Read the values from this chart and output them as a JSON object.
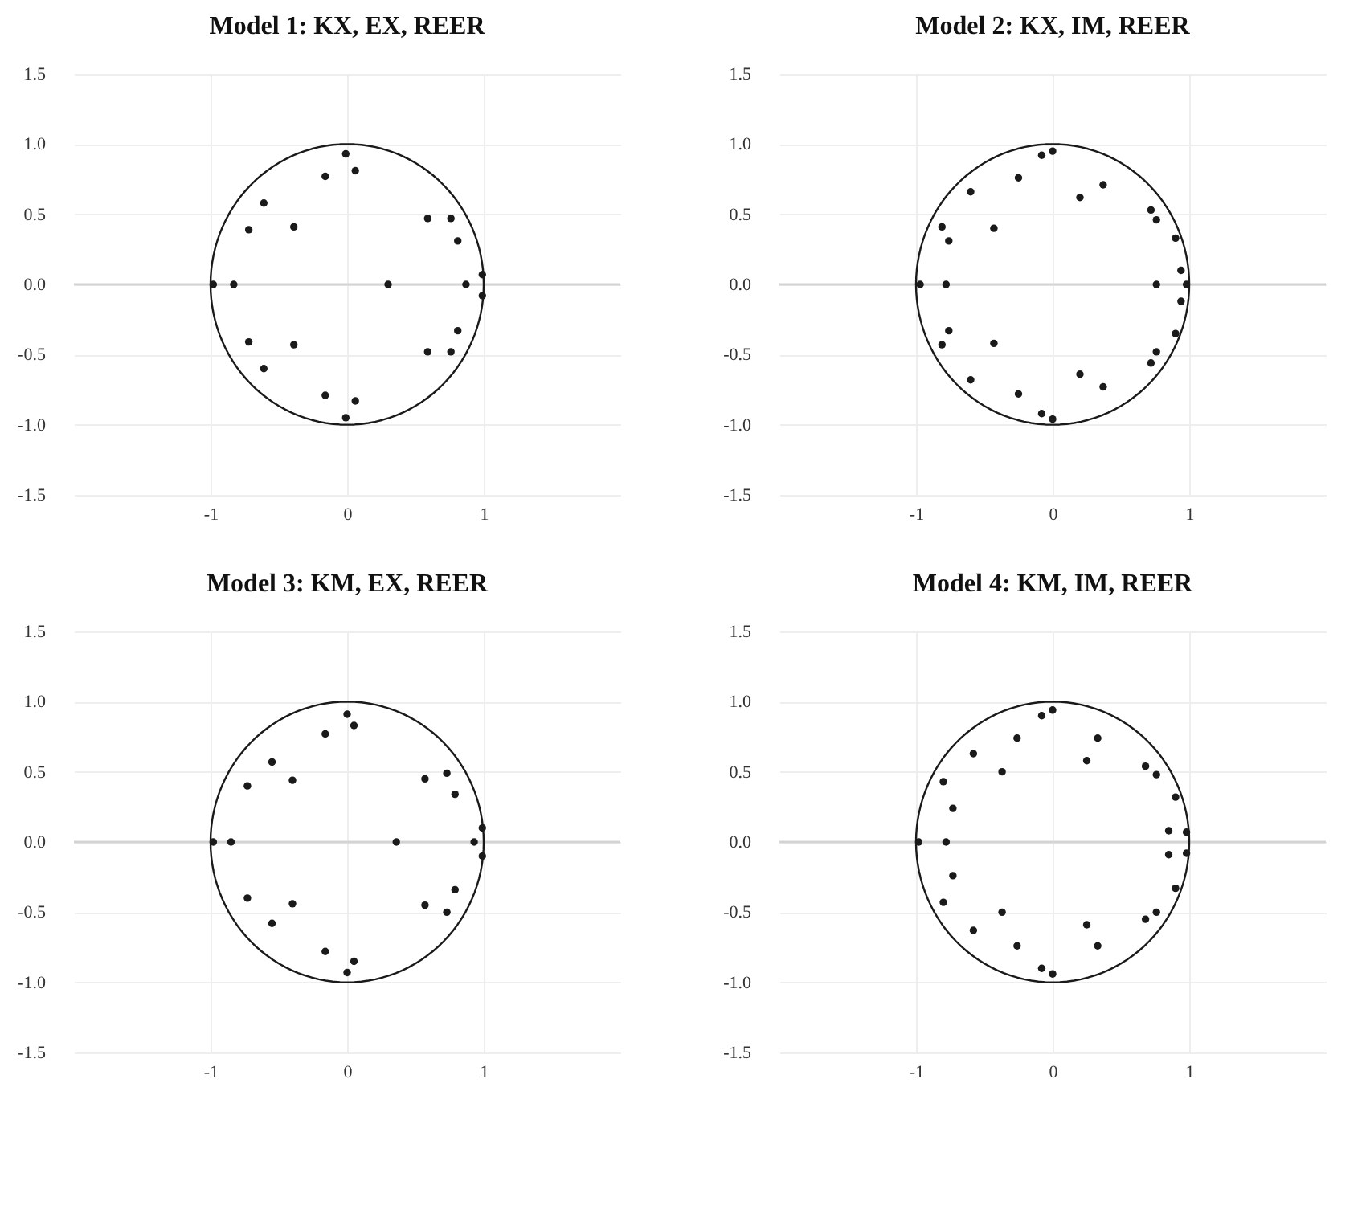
{
  "chart_data": [
    {
      "type": "scatter",
      "title": "Model 1: KX, EX, REER",
      "xlim": [
        -2,
        2
      ],
      "ylim": [
        -1.5,
        1.5
      ],
      "xticks": [
        -1,
        0,
        1
      ],
      "yticks": [
        1.5,
        {
          "value": 1,
          "label": "1.0"
        },
        0.5,
        {
          "value": 0,
          "label": "0.0"
        },
        -0.5,
        {
          "value": -1,
          "label": "-1.0"
        },
        -1.5
      ],
      "grid": true,
      "marker": "circle",
      "ref_lines": [
        {
          "axis": "y",
          "value": 0,
          "color": "#d4d4d4"
        }
      ],
      "series": [
        {
          "color": "#1a1a1a",
          "x": [
            -0.01,
            -0.01,
            0.06,
            0.06,
            -0.16,
            -0.16,
            -0.61,
            -0.61,
            -0.72,
            -0.72,
            -0.39,
            -0.39,
            -0.98,
            -0.83,
            0.3,
            0.59,
            0.59,
            0.76,
            0.76,
            0.81,
            0.81,
            0.99,
            0.99,
            0.87
          ],
          "values": [
            0.93,
            -0.95,
            0.81,
            -0.83,
            0.77,
            -0.79,
            0.58,
            -0.6,
            0.39,
            -0.41,
            0.41,
            -0.43,
            0,
            0,
            0,
            0.47,
            -0.48,
            0.47,
            -0.48,
            0.31,
            -0.33,
            0.07,
            -0.08,
            0
          ]
        }
      ]
    },
    {
      "type": "scatter",
      "title": "Model 2: KX, IM, REER",
      "xlim": [
        -2,
        2
      ],
      "ylim": [
        -1.5,
        1.5
      ],
      "xticks": [
        -1,
        0,
        1
      ],
      "yticks": [
        1.5,
        {
          "value": 1,
          "label": "1.0"
        },
        0.5,
        {
          "value": 0,
          "label": "0.0"
        },
        -0.5,
        {
          "value": -1,
          "label": "-1.0"
        },
        -1.5
      ],
      "grid": true,
      "marker": "circle",
      "ref_lines": [
        {
          "axis": "y",
          "value": 0,
          "color": "#d4d4d4"
        }
      ],
      "series": [
        {
          "color": "#1a1a1a",
          "x": [
            -0.08,
            0,
            -0.08,
            0,
            -0.25,
            -0.25,
            -0.6,
            -0.6,
            0.2,
            0.2,
            0.37,
            0.37,
            -0.81,
            -0.81,
            -0.76,
            -0.76,
            -0.43,
            -0.43,
            -0.97,
            -0.78,
            0.72,
            0.72,
            0.76,
            0.76,
            0.9,
            0.9,
            0.94,
            0.94,
            0.98,
            0.76
          ],
          "values": [
            0.92,
            0.95,
            -0.92,
            -0.96,
            0.76,
            -0.78,
            0.66,
            -0.68,
            0.62,
            -0.64,
            0.71,
            -0.73,
            0.41,
            -0.43,
            0.31,
            -0.33,
            0.4,
            -0.42,
            0,
            0,
            0.53,
            -0.56,
            0.46,
            -0.48,
            0.33,
            -0.35,
            0.1,
            -0.12,
            0,
            0
          ]
        }
      ]
    },
    {
      "type": "scatter",
      "title": "Model 3: KM, EX, REER",
      "xlim": [
        -2,
        2
      ],
      "ylim": [
        -1.5,
        1.5
      ],
      "xticks": [
        -1,
        0,
        1
      ],
      "yticks": [
        1.5,
        {
          "value": 1,
          "label": "1.0"
        },
        0.5,
        {
          "value": 0,
          "label": "0.0"
        },
        -0.5,
        {
          "value": -1,
          "label": "-1.0"
        },
        -1.5
      ],
      "grid": true,
      "marker": "circle",
      "ref_lines": [
        {
          "axis": "y",
          "value": 0,
          "color": "#d4d4d4"
        }
      ],
      "series": [
        {
          "color": "#1a1a1a",
          "x": [
            0,
            0,
            0.05,
            0.05,
            -0.16,
            -0.16,
            -0.55,
            -0.55,
            -0.73,
            -0.73,
            -0.4,
            -0.4,
            -0.98,
            -0.85,
            0.36,
            0.57,
            0.57,
            0.73,
            0.73,
            0.79,
            0.79,
            0.99,
            0.99,
            0.93
          ],
          "values": [
            0.91,
            -0.93,
            0.83,
            -0.85,
            0.77,
            -0.78,
            0.57,
            -0.58,
            0.4,
            -0.4,
            0.44,
            -0.44,
            0,
            0,
            0,
            0.45,
            -0.45,
            0.49,
            -0.5,
            0.34,
            -0.34,
            0.1,
            -0.1,
            0
          ]
        }
      ]
    },
    {
      "type": "scatter",
      "title": "Model 4: KM, IM, REER",
      "xlim": [
        -2,
        2
      ],
      "ylim": [
        -1.5,
        1.5
      ],
      "xticks": [
        -1,
        0,
        1
      ],
      "yticks": [
        1.5,
        {
          "value": 1,
          "label": "1.0"
        },
        0.5,
        {
          "value": 0,
          "label": "0.0"
        },
        -0.5,
        {
          "value": -1,
          "label": "-1.0"
        },
        -1.5
      ],
      "grid": true,
      "marker": "circle",
      "ref_lines": [
        {
          "axis": "y",
          "value": 0,
          "color": "#d4d4d4"
        }
      ],
      "series": [
        {
          "color": "#1a1a1a",
          "x": [
            -0.08,
            0,
            -0.08,
            0,
            -0.26,
            -0.26,
            -0.58,
            -0.58,
            -0.37,
            -0.37,
            0.33,
            0.33,
            0.25,
            0.25,
            -0.8,
            -0.8,
            -0.73,
            -0.73,
            -0.98,
            -0.78,
            0.68,
            0.68,
            0.76,
            0.76,
            0.9,
            0.9,
            0.85,
            0.85,
            0.98,
            0.98
          ],
          "values": [
            0.9,
            0.94,
            -0.9,
            -0.94,
            0.74,
            -0.74,
            0.63,
            -0.63,
            0.5,
            -0.5,
            0.74,
            -0.74,
            0.58,
            -0.59,
            0.43,
            -0.43,
            0.24,
            -0.24,
            0,
            0,
            0.54,
            -0.55,
            0.48,
            -0.5,
            0.32,
            -0.33,
            0.08,
            -0.09,
            0.07,
            -0.08
          ]
        }
      ]
    }
  ]
}
